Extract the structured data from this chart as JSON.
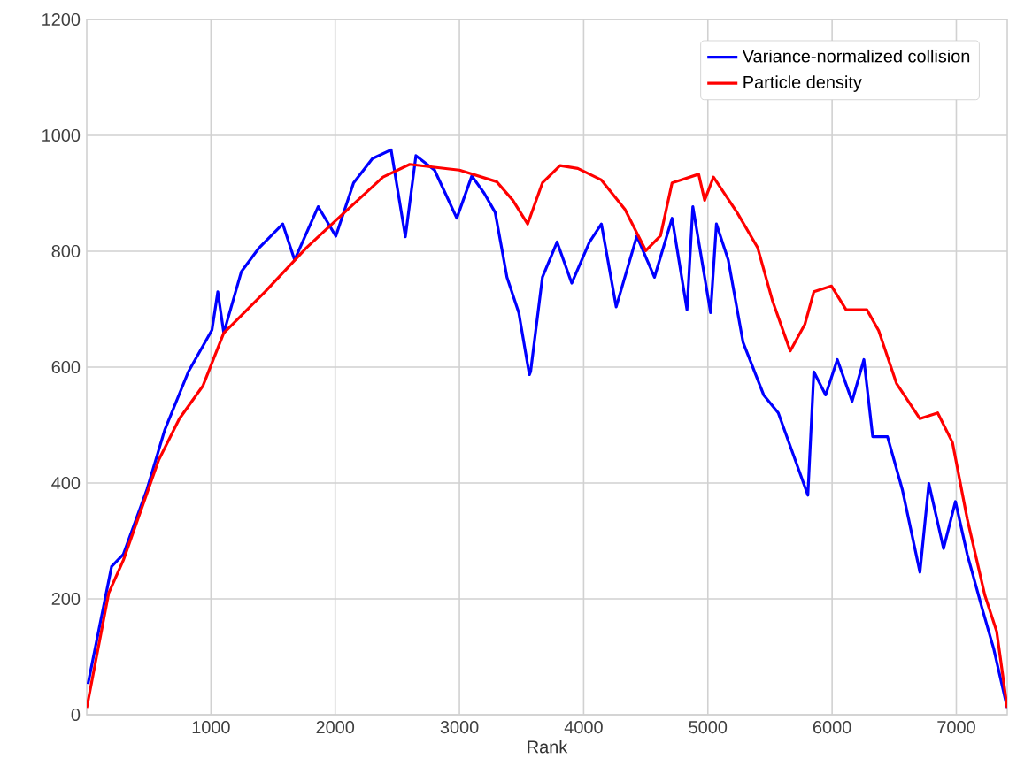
{
  "chart_data": {
    "type": "line",
    "xlabel": "Rank",
    "xlim": [
      0,
      7410
    ],
    "ylim": [
      0,
      1200
    ],
    "xticks": [
      1000,
      2000,
      3000,
      4000,
      5000,
      6000,
      7000
    ],
    "yticks": [
      0,
      200,
      400,
      600,
      800,
      1000,
      1200
    ],
    "grid": true,
    "legend": "top right",
    "marker": "none",
    "line_style": "solid",
    "series": [
      {
        "name": "Variance-normalized collision",
        "color": "#0000ff",
        "x": [
          10,
          200,
          295,
          485,
          627,
          818,
          1008,
          1055,
          1103,
          1245,
          1388,
          1578,
          1673,
          1863,
          2005,
          2148,
          2300,
          2450,
          2565,
          2650,
          2800,
          2979,
          3100,
          3200,
          3288,
          3383,
          3478,
          3563,
          3573,
          3668,
          3786,
          3904,
          4047,
          4143,
          4262,
          4428,
          4570,
          4712,
          4832,
          4879,
          5022,
          5069,
          5164,
          5283,
          5449,
          5567,
          5686,
          5805,
          5853,
          5948,
          6042,
          6161,
          6256,
          6327,
          6446,
          6565,
          6707,
          6779,
          6897,
          6993,
          7088,
          7206,
          7301,
          7410
        ],
        "values": [
          53,
          256,
          277,
          389,
          491,
          592,
          664,
          730,
          659,
          765,
          806,
          847,
          785,
          877,
          826,
          918,
          960,
          975,
          825,
          965,
          940,
          857,
          930,
          900,
          867,
          755,
          694,
          587,
          592,
          755,
          816,
          745,
          816,
          847,
          704,
          826,
          755,
          857,
          699,
          877,
          694,
          847,
          785,
          643,
          552,
          521,
          450,
          379,
          592,
          552,
          613,
          541,
          613,
          480,
          480,
          389,
          246,
          399,
          287,
          368,
          277,
          185,
          114,
          12
        ]
      },
      {
        "name": "Particle density",
        "color": "#ff0000",
        "x": [
          0,
          177,
          295,
          580,
          746,
          936,
          1103,
          1435,
          1768,
          2100,
          2385,
          2600,
          3000,
          3300,
          3430,
          3549,
          3668,
          3810,
          3953,
          4143,
          4333,
          4500,
          4619,
          4712,
          4926,
          4974,
          5045,
          5235,
          5401,
          5521,
          5663,
          5781,
          5853,
          5995,
          6113,
          6280,
          6375,
          6518,
          6707,
          6850,
          6969,
          7088,
          7230,
          7325,
          7410
        ],
        "values": [
          12,
          210,
          267,
          440,
          511,
          568,
          659,
          730,
          806,
          872,
          928,
          950,
          940,
          920,
          888,
          847,
          918,
          948,
          943,
          923,
          872,
          801,
          827,
          918,
          933,
          888,
          928,
          867,
          806,
          714,
          628,
          674,
          730,
          740,
          699,
          699,
          663,
          572,
          511,
          521,
          470,
          338,
          206,
          144,
          12
        ]
      }
    ]
  }
}
